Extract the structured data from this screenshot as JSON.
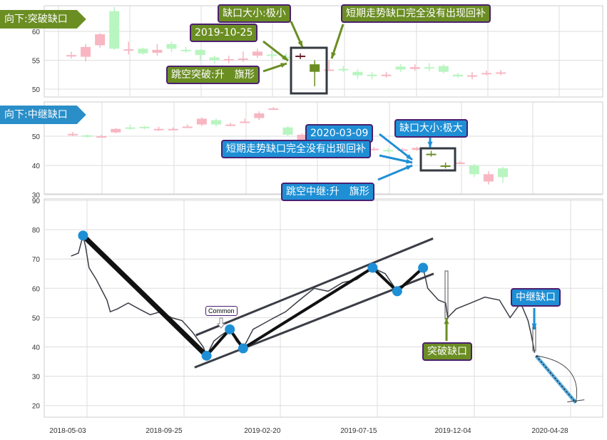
{
  "colors": {
    "up": "#f7b6c2",
    "down": "#b8f5c0",
    "gap_before": "#6b1e2a",
    "gap_after": "#6b8e23",
    "olive": "#6b8e23",
    "blue": "#1e8fd5",
    "line": "#3a3d45",
    "pivot": "#1e8fd5"
  },
  "panel1": {
    "banner": "向下:突破缺口",
    "gap_size": "缺口大小:极小",
    "date": "2019-10-25",
    "fill_status": "短期走势缺口完全没有出现回补",
    "pattern": "跳空突破:升　旗形"
  },
  "panel2": {
    "banner": "向下:中继缺口",
    "date": "2020-03-09",
    "gap_size": "缺口大小:极大",
    "fill_status": "短期走势缺口完全没有出现回补",
    "pattern": "跳空中继:升　旗形"
  },
  "panel3": {
    "common_label": "Common",
    "breakaway_label": "突破缺口",
    "runaway_label": "中继缺口"
  },
  "chart_data": [
    {
      "type": "candlestick",
      "yticks": [
        50,
        55,
        60
      ],
      "ylim": [
        48.6,
        64.4
      ],
      "grid": true,
      "candles": [
        {
          "o": 55.9,
          "c": 55.9,
          "h": 56.5,
          "l": 55.3,
          "k": "up"
        },
        {
          "o": 55.6,
          "c": 57.3,
          "h": 57.8,
          "l": 54.8,
          "k": "up"
        },
        {
          "o": 57.6,
          "c": 59.5,
          "h": 59.7,
          "l": 57.2,
          "k": "up"
        },
        {
          "o": 63.5,
          "c": 57,
          "h": 64.2,
          "l": 56.8,
          "k": "down"
        },
        {
          "o": 56.7,
          "c": 56.9,
          "h": 58.2,
          "l": 56,
          "k": "up"
        },
        {
          "o": 57,
          "c": 56.2,
          "h": 57.2,
          "l": 56,
          "k": "down"
        },
        {
          "o": 56.3,
          "c": 56.8,
          "h": 57.8,
          "l": 55.8,
          "k": "up"
        },
        {
          "o": 57.8,
          "c": 57,
          "h": 58.2,
          "l": 56.4,
          "k": "down"
        },
        {
          "o": 56.8,
          "c": 56.8,
          "h": 57.3,
          "l": 56.3,
          "k": "down"
        },
        {
          "o": 56.8,
          "c": 55.9,
          "h": 56.9,
          "l": 54.9,
          "k": "down"
        },
        {
          "o": 55.5,
          "c": 55,
          "h": 55.8,
          "l": 54.4,
          "k": "down"
        },
        {
          "o": 55.2,
          "c": 55.2,
          "h": 55.8,
          "l": 54.5,
          "k": "up"
        },
        {
          "o": 55.1,
          "c": 55.3,
          "h": 56.5,
          "l": 54.7,
          "k": "up"
        },
        {
          "o": 55.8,
          "c": 56.5,
          "h": 57,
          "l": 55.4,
          "k": "up"
        },
        {
          "o": 56,
          "c": 56,
          "h": 56.8,
          "l": 55.2,
          "k": "down"
        },
        {
          "o": 55.6,
          "c": 55.4,
          "h": 56.2,
          "l": 55,
          "k": "down"
        },
        {
          "o": 55.8,
          "c": 55.8,
          "h": 56.2,
          "l": 55.2,
          "k": "gap_before"
        },
        {
          "o": 54.3,
          "c": 53,
          "h": 55,
          "l": 50.5,
          "k": "gap_after"
        },
        {
          "o": 53.4,
          "c": 53.4,
          "h": 55,
          "l": 53.3,
          "k": "up"
        },
        {
          "o": 53.5,
          "c": 53.5,
          "h": 54,
          "l": 53,
          "k": "down"
        },
        {
          "o": 53,
          "c": 52.4,
          "h": 53.5,
          "l": 51.8,
          "k": "down"
        },
        {
          "o": 52.5,
          "c": 52.3,
          "h": 53,
          "l": 51.7,
          "k": "down"
        },
        {
          "o": 52.5,
          "c": 52.5,
          "h": 53,
          "l": 52,
          "k": "up"
        },
        {
          "o": 53.9,
          "c": 53.4,
          "h": 54.3,
          "l": 53,
          "k": "down"
        },
        {
          "o": 53.5,
          "c": 53.8,
          "h": 54.3,
          "l": 53.2,
          "k": "up"
        },
        {
          "o": 53.8,
          "c": 53.6,
          "h": 54.5,
          "l": 53.1,
          "k": "down"
        },
        {
          "o": 54,
          "c": 53,
          "h": 54.3,
          "l": 52.7,
          "k": "down"
        },
        {
          "o": 52.5,
          "c": 52.2,
          "h": 52.8,
          "l": 52,
          "k": "down"
        },
        {
          "o": 52.4,
          "c": 52.4,
          "h": 53,
          "l": 51.7,
          "k": "up"
        },
        {
          "o": 52.8,
          "c": 52.8,
          "h": 53.2,
          "l": 52.4,
          "k": "up"
        },
        {
          "o": 52.9,
          "c": 52.9,
          "h": 53.3,
          "l": 52.4,
          "k": "up"
        }
      ]
    },
    {
      "type": "candlestick",
      "yticks": [
        30,
        40,
        50
      ],
      "ylim": [
        30,
        61.7
      ],
      "grid": true,
      "candles": [
        {
          "o": 50.8,
          "c": 50.8,
          "h": 51.5,
          "l": 50,
          "k": "up"
        },
        {
          "o": 50.3,
          "c": 49.8,
          "h": 50.6,
          "l": 49.5,
          "k": "down"
        },
        {
          "o": 50,
          "c": 50,
          "h": 50.5,
          "l": 49.5,
          "k": "up"
        },
        {
          "o": 51.3,
          "c": 52.5,
          "h": 52.8,
          "l": 51,
          "k": "up"
        },
        {
          "o": 53,
          "c": 53,
          "h": 54,
          "l": 52.2,
          "k": "down"
        },
        {
          "o": 53.2,
          "c": 52.8,
          "h": 53.6,
          "l": 52.4,
          "k": "down"
        },
        {
          "o": 52.5,
          "c": 52.5,
          "h": 53.3,
          "l": 51.8,
          "k": "up"
        },
        {
          "o": 52.5,
          "c": 52.5,
          "h": 53,
          "l": 52,
          "k": "up"
        },
        {
          "o": 53.3,
          "c": 53.3,
          "h": 54,
          "l": 52.8,
          "k": "up"
        },
        {
          "o": 54,
          "c": 56,
          "h": 56.5,
          "l": 53.5,
          "k": "up"
        },
        {
          "o": 55.5,
          "c": 54,
          "h": 56,
          "l": 53.3,
          "k": "down"
        },
        {
          "o": 54,
          "c": 54,
          "h": 54.6,
          "l": 53.4,
          "k": "up"
        },
        {
          "o": 55,
          "c": 55,
          "h": 56,
          "l": 54.5,
          "k": "up"
        },
        {
          "o": 56.2,
          "c": 57.8,
          "h": 58.5,
          "l": 55.5,
          "k": "up"
        },
        {
          "o": 59.5,
          "c": 59.5,
          "h": 60,
          "l": 59,
          "k": "up"
        },
        {
          "o": 53,
          "c": 50.5,
          "h": 53.5,
          "l": 50,
          "k": "down"
        },
        {
          "o": 48.5,
          "c": 50.5,
          "h": 51,
          "l": 48,
          "k": "up"
        },
        {
          "o": 47.5,
          "c": 48,
          "h": 48.5,
          "l": 47,
          "k": "up"
        },
        {
          "o": 47,
          "c": 47.4,
          "h": 48,
          "l": 46.5,
          "k": "up"
        },
        {
          "o": 46.5,
          "c": 46.8,
          "h": 47.5,
          "l": 46,
          "k": "up"
        },
        {
          "o": 46,
          "c": 46.2,
          "h": 46.8,
          "l": 45.5,
          "k": "up"
        },
        {
          "o": 45.5,
          "c": 45.7,
          "h": 46.3,
          "l": 45,
          "k": "up"
        },
        {
          "o": 45.3,
          "c": 45,
          "h": 46,
          "l": 44.3,
          "k": "down"
        },
        {
          "o": 45.5,
          "c": 45.5,
          "h": 46,
          "l": 45,
          "k": "up"
        },
        {
          "o": 45.3,
          "c": 46,
          "h": 46.4,
          "l": 45,
          "k": "up"
        },
        {
          "o": 44,
          "c": 44,
          "h": 45,
          "l": 43,
          "k": "gap_after"
        },
        {
          "o": 40,
          "c": 40,
          "h": 41,
          "l": 39,
          "k": "gap_after"
        },
        {
          "o": 41,
          "c": 41,
          "h": 41.5,
          "l": 40.5,
          "k": "up"
        },
        {
          "o": 40,
          "c": 37,
          "h": 40.5,
          "l": 36,
          "k": "down"
        },
        {
          "o": 34.5,
          "c": 37,
          "h": 38,
          "l": 33.5,
          "k": "up"
        },
        {
          "o": 39,
          "c": 36,
          "h": 39.5,
          "l": 34,
          "k": "down"
        }
      ]
    },
    {
      "type": "line",
      "xlabel": "",
      "ylabel": "",
      "yticks": [
        20,
        30,
        40,
        50,
        60,
        70,
        80,
        90
      ],
      "ylim": [
        15.6,
        90
      ],
      "xticks": [
        "2018-05-03",
        "2018-09-25",
        "2019-02-20",
        "2019-07-15",
        "2019-12-04",
        "2020-04-28"
      ],
      "grid": true,
      "series": [
        {
          "points": [
            [
              "2018-05-08",
              71
            ],
            [
              "2018-05-19",
              72
            ],
            [
              "2018-05-26",
              78
            ],
            [
              "2018-05-30",
              74
            ],
            [
              "2018-06-04",
              67
            ],
            [
              "2018-06-15",
              63
            ],
            [
              "2018-07-01",
              56
            ],
            [
              "2018-07-06",
              52
            ],
            [
              "2018-07-17",
              53
            ],
            [
              "2018-08-02",
              55
            ],
            [
              "2018-08-18",
              53
            ],
            [
              "2018-09-04",
              51
            ],
            [
              "2018-09-20",
              52
            ],
            [
              "2018-10-06",
              50
            ],
            [
              "2018-10-22",
              49
            ],
            [
              "2018-11-07",
              45
            ],
            [
              "2018-11-23",
              40
            ],
            [
              "2018-11-28",
              37
            ],
            [
              "2018-12-09",
              42
            ],
            [
              "2018-12-20",
              44
            ],
            [
              "2019-01-02",
              46
            ],
            [
              "2019-01-12",
              42
            ],
            [
              "2019-01-22",
              39.5
            ],
            [
              "2019-02-06",
              46
            ],
            [
              "2019-02-22",
              48
            ],
            [
              "2019-03-10",
              50
            ],
            [
              "2019-03-27",
              52
            ],
            [
              "2019-04-17",
              56
            ],
            [
              "2019-05-09",
              60
            ],
            [
              "2019-05-30",
              59
            ],
            [
              "2019-06-21",
              62
            ],
            [
              "2019-07-12",
              63
            ],
            [
              "2019-08-05",
              67
            ],
            [
              "2019-08-24",
              65
            ],
            [
              "2019-09-11",
              59
            ],
            [
              "2019-09-30",
              63
            ],
            [
              "2019-10-20",
              67
            ],
            [
              "2019-10-27",
              60
            ],
            [
              "2019-11-12",
              56
            ],
            [
              "2019-11-23",
              55
            ],
            [
              "2019-11-26",
              50
            ],
            [
              "2019-12-09",
              53
            ],
            [
              "2019-12-31",
              55
            ],
            [
              "2020-01-21",
              57
            ],
            [
              "2020-02-12",
              56
            ],
            [
              "2020-02-28",
              50
            ],
            [
              "2020-03-15",
              55
            ],
            [
              "2020-03-26",
              49
            ],
            [
              "2020-03-31",
              44
            ],
            [
              "2020-04-05",
              38
            ]
          ]
        }
      ],
      "pivots": [
        [
          "2018-05-26",
          78
        ],
        [
          "2018-11-28",
          37
        ],
        [
          "2019-01-02",
          46
        ],
        [
          "2019-01-22",
          39.5
        ],
        [
          "2019-08-05",
          67
        ],
        [
          "2019-09-11",
          59
        ],
        [
          "2019-10-20",
          67
        ]
      ],
      "channel_upper": [
        [
          "2018-11-12",
          44
        ],
        [
          "2019-11-04",
          77
        ]
      ],
      "channel_lower": [
        [
          "2018-11-10",
          33
        ],
        [
          "2019-11-05",
          65
        ]
      ],
      "projection": [
        [
          "2020-04-07",
          37
        ],
        [
          "2020-06-06",
          21
        ]
      ]
    }
  ]
}
